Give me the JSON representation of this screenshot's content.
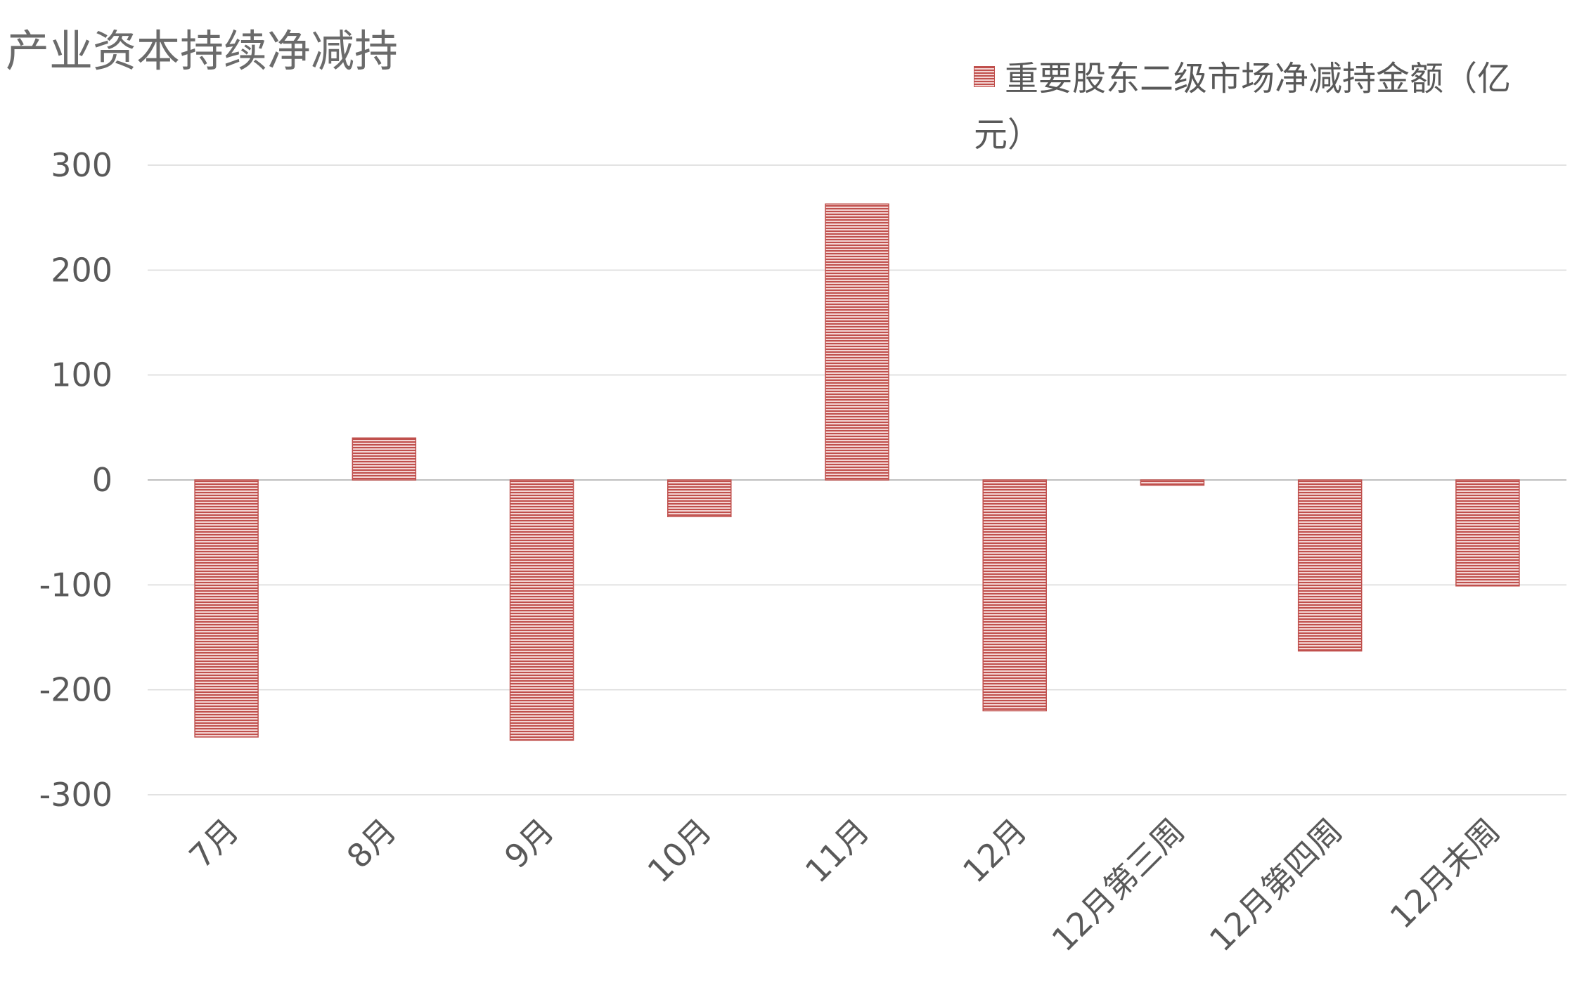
{
  "chart_data": {
    "type": "bar",
    "title": "产业资本持续净减持",
    "xlabel": "",
    "ylabel": "",
    "ylim": [
      -300,
      300
    ],
    "yticks": [
      300,
      200,
      100,
      0,
      -100,
      -200,
      -300
    ],
    "grid": true,
    "legend_position": "top-right",
    "categories": [
      "7月",
      "8月",
      "9月",
      "10月",
      "11月",
      "12月",
      "12月第三周",
      "12月第四周",
      "12月末周"
    ],
    "series": [
      {
        "name": "重要股东二级市场净减持金额（亿元）",
        "color": "#c0504d",
        "values": [
          -245,
          40,
          -248,
          -35,
          263,
          -220,
          -5,
          -163,
          -101
        ]
      }
    ]
  }
}
